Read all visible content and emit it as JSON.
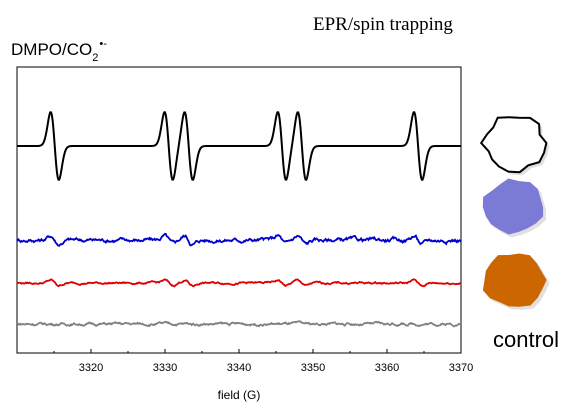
{
  "header": {
    "title": "EPR/spin trapping",
    "adduct_base": "DMPO/CO",
    "adduct_sub": "2",
    "adduct_sup": "•-"
  },
  "legend": {
    "control_label": "control",
    "swatches": [
      {
        "name": "black-trace-sample",
        "fill": "#ffffff",
        "stroke": "#000000"
      },
      {
        "name": "blue-trace-sample",
        "fill": "#7b7bd6",
        "stroke": "none"
      },
      {
        "name": "red-trace-sample",
        "fill": "#cc6600",
        "stroke": "none"
      }
    ]
  },
  "chart_data": {
    "type": "line",
    "title": "EPR/spin trapping",
    "xlabel": "field (G)",
    "ylabel": "",
    "xlim": [
      3310,
      3370
    ],
    "x_ticks": [
      3320,
      3330,
      3340,
      3350,
      3360,
      3370
    ],
    "y_ticks_shown": false,
    "lines_at_field": [
      3315.1,
      3330.5,
      3333.2,
      3345.8,
      3348.5,
      3364.2
    ],
    "series": [
      {
        "color": "#000000",
        "baseline": 0,
        "amplitude": 1.0,
        "noise": 0.0
      },
      {
        "color": "#0000cc",
        "baseline": 0,
        "amplitude": 0.12,
        "noise": 0.03
      },
      {
        "color": "#dd0000",
        "baseline": 0,
        "amplitude": 0.08,
        "noise": 0.015
      },
      {
        "color": "#808080",
        "baseline": 0,
        "amplitude": 0.0,
        "noise": 0.02
      }
    ]
  }
}
